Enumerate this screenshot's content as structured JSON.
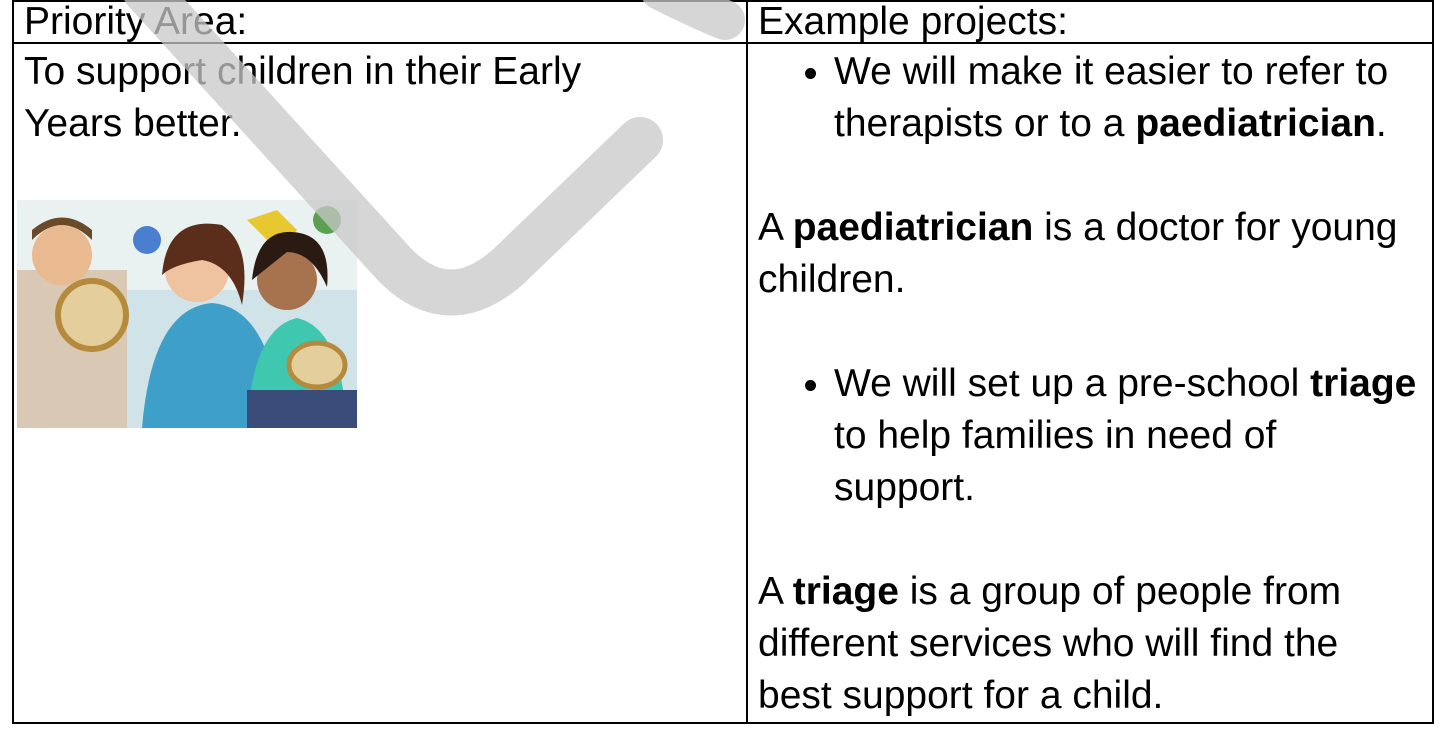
{
  "table": {
    "header": [
      "Priority Area:",
      "Example projects:"
    ],
    "priority": "To support children in their Early Years better.",
    "projects": [
      {
        "bullet": [
          "We will make it easier to refer to therapists or to a ",
          "paediatrician",
          "."
        ],
        "definition": [
          "A ",
          "paediatrician",
          " is a doctor for young children."
        ]
      },
      {
        "bullet": [
          "We will set up a pre-school ",
          "triage",
          " to help families in need of support."
        ],
        "definition": [
          "A ",
          "triage",
          " is a group of people from different services who will find the best support for a child."
        ]
      }
    ]
  }
}
